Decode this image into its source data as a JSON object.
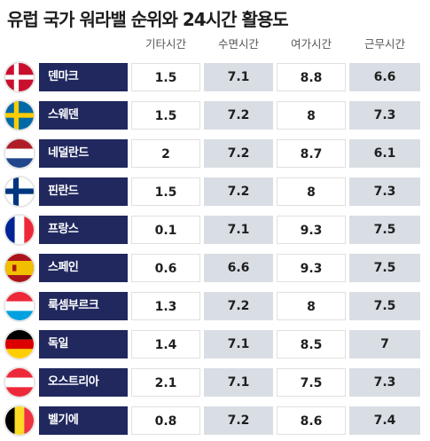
{
  "title": "유럽 국가 워라밸 순위와 24시간 활용도",
  "columns": [
    "기타시간",
    "수면시간",
    "여가시간",
    "근무시간"
  ],
  "rows": [
    {
      "country": "덴마크",
      "flag": "denmark-flag",
      "values": [
        "1.5",
        "7.1",
        "8.8",
        "6.6"
      ]
    },
    {
      "country": "스웨덴",
      "flag": "sweden-flag",
      "values": [
        "1.5",
        "7.2",
        "8",
        "7.3"
      ]
    },
    {
      "country": "네덜란드",
      "flag": "netherlands-flag",
      "values": [
        "2",
        "7.2",
        "8.7",
        "6.1"
      ]
    },
    {
      "country": "핀란드",
      "flag": "finland-flag",
      "values": [
        "1.5",
        "7.2",
        "8",
        "7.3"
      ]
    },
    {
      "country": "프랑스",
      "flag": "france-flag",
      "values": [
        "0.1",
        "7.1",
        "9.3",
        "7.5"
      ]
    },
    {
      "country": "스페인",
      "flag": "spain-flag",
      "values": [
        "0.6",
        "6.6",
        "9.3",
        "7.5"
      ]
    },
    {
      "country": "룩셈부르크",
      "flag": "luxembourg-flag",
      "values": [
        "1.3",
        "7.2",
        "8",
        "7.5"
      ]
    },
    {
      "country": "독일",
      "flag": "germany-flag",
      "values": [
        "1.4",
        "7.1",
        "8.5",
        "7"
      ]
    },
    {
      "country": "오스트리아",
      "flag": "austria-flag",
      "values": [
        "2.1",
        "7.1",
        "7.5",
        "7.3"
      ]
    },
    {
      "country": "벨기에",
      "flag": "belgium-flag",
      "values": [
        "0.8",
        "7.2",
        "8.6",
        "7.4"
      ]
    }
  ],
  "colors": {
    "country_label_bg": "#20285e",
    "shaded_col_bg": "#d9dde4"
  }
}
